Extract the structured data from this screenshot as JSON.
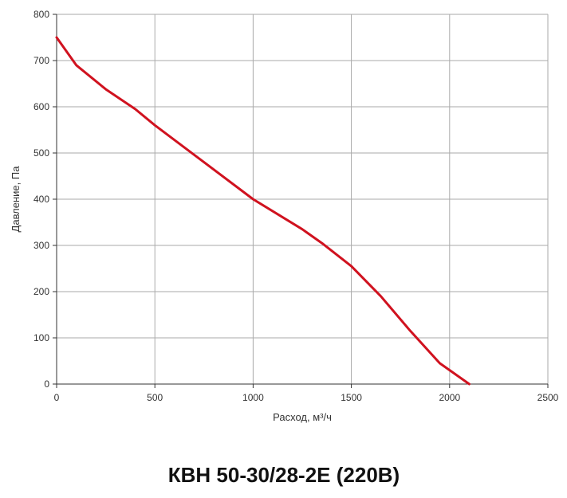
{
  "chart_data": {
    "type": "line",
    "title": "КВН 50-30/28-2Е (220В)",
    "x_label": "Расход, м³/ч",
    "y_label": "Давление, Па",
    "x": [
      0,
      100,
      250,
      400,
      500,
      750,
      1000,
      1250,
      1350,
      1500,
      1650,
      1800,
      1950,
      2100
    ],
    "series": [
      {
        "name": "КВН 50-30/28-2Е (220В)",
        "color": "#d0121f",
        "values": [
          750,
          690,
          638,
          595,
          560,
          480,
          400,
          335,
          305,
          255,
          190,
          115,
          45,
          0
        ]
      }
    ],
    "xlim": [
      0,
      2500
    ],
    "xticks": [
      0,
      500,
      1000,
      1500,
      2000,
      2500
    ],
    "ylim": [
      0,
      800
    ],
    "yticks": [
      0,
      100,
      200,
      300,
      400,
      500,
      600,
      700,
      800
    ],
    "grid": true
  }
}
